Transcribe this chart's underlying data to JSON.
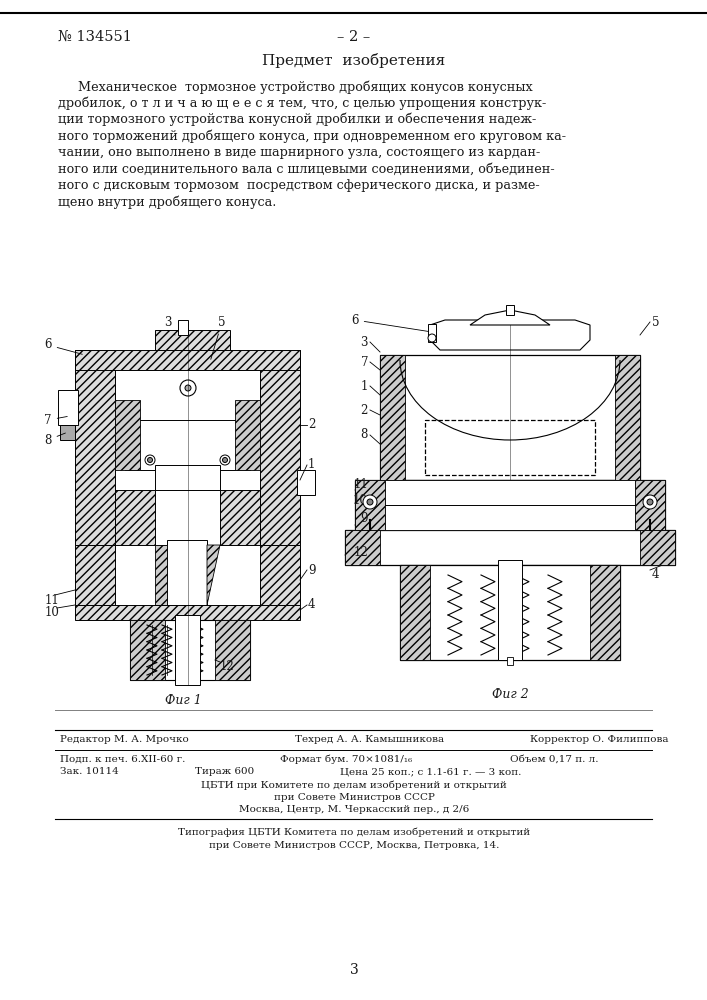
{
  "bg_color": "#ffffff",
  "page_number_left": "№ 134551",
  "page_number_center": "– 2 –",
  "section_title": "Предмет  изобретения",
  "body_lines": [
    "     Механическое  тормозное устройство дробящих конусов конусных",
    "дробилок, о т л и ч а ю щ е е с я тем, что, с целью упрощения конструк-",
    "ции тормозного устройства конусной дробилки и обеспечения надеж-",
    "ного торможений дробящего конуса, при одновременном его круговом ка-",
    "чании, оно выполнено в виде шарнирного узла, состоящего из кардан-",
    "ного или соединительного вала с шлицевыми соединениями, объединен-",
    "ного с дисковым тормозом  посредством сферического диска, и разме-",
    "щено внутри дробящего конуса."
  ],
  "fig1_caption": "Фиг 1",
  "fig2_caption": "Фиг 2",
  "footer_line1_left": "Редактор М. А. Мрочко",
  "footer_line1_center": "Техред А. А. Камышникова",
  "footer_line1_right": "Корректор О. Филиппова",
  "footer_line2_left": "Подп. к печ. 6.ХII-60 г.",
  "footer_line2_center": "Формат бум. 70×1081/₁₆",
  "footer_line2_right": "Объем 0,17 п. л.",
  "footer_line3_left": "Зак. 10114",
  "footer_line3_center": "Тираж 600",
  "footer_line3_right": "Цена 25 коп.; с 1.1-61 г. — 3 коп.",
  "footer_org1": "ЦБТИ при Комитете по делам изобретений и открытий",
  "footer_org2": "при Совете Министров СССР",
  "footer_org3": "Москва, Центр, М. Черкасский пер., д 2/6",
  "footer_print1": "Типография ЦБТИ Комитета по делам изобретений и открытий",
  "footer_print2": "при Совете Министров СССР, Москва, Петровка, 14.",
  "page_num_bottom": "3",
  "text_color": "#1a1a1a",
  "line_color": "#000000",
  "hatch_color": "#555555"
}
